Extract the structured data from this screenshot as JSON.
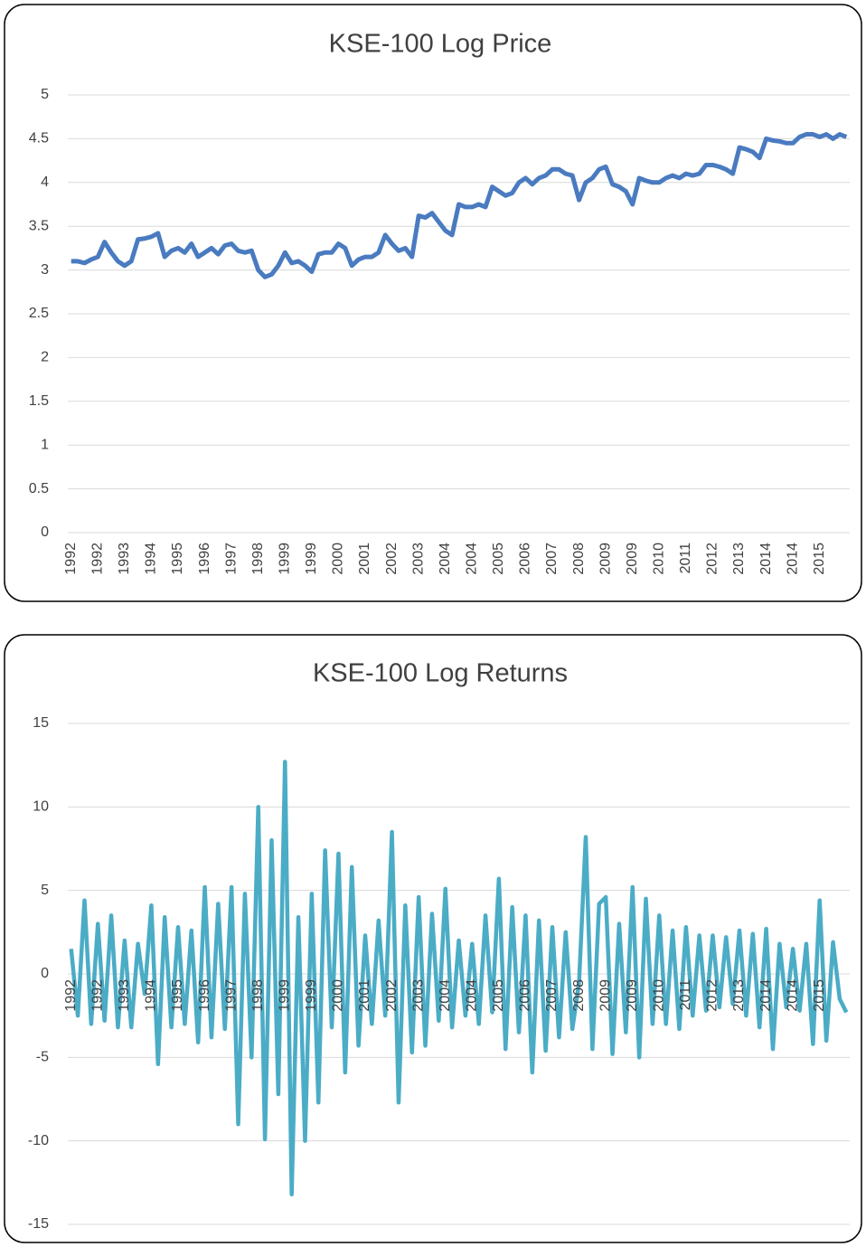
{
  "chart_data": [
    {
      "type": "line",
      "title": "KSE-100 Log Price",
      "categories": [
        "1992",
        null,
        null,
        null,
        "1992",
        null,
        null,
        null,
        "1993",
        null,
        null,
        null,
        "1994",
        null,
        null,
        null,
        "1995",
        null,
        null,
        null,
        "1996",
        null,
        null,
        null,
        "1997",
        null,
        null,
        null,
        "1998",
        null,
        null,
        null,
        "1999",
        null,
        null,
        null,
        "1999",
        null,
        null,
        null,
        "2000",
        null,
        null,
        null,
        "2001",
        null,
        null,
        null,
        "2002",
        null,
        null,
        null,
        "2003",
        null,
        null,
        null,
        "2004",
        null,
        null,
        null,
        "2004",
        null,
        null,
        null,
        "2005",
        null,
        null,
        null,
        "2006",
        null,
        null,
        null,
        "2007",
        null,
        null,
        null,
        "2008",
        null,
        null,
        null,
        "2009",
        null,
        null,
        null,
        "2009",
        null,
        null,
        null,
        "2010",
        null,
        null,
        null,
        "2011",
        null,
        null,
        null,
        "2012",
        null,
        null,
        null,
        "2013",
        null,
        null,
        null,
        "2014",
        null,
        null,
        null,
        "2014",
        null,
        null,
        null,
        "2015",
        null,
        null,
        null,
        null
      ],
      "values": [
        3.1,
        3.1,
        3.08,
        3.12,
        3.15,
        3.32,
        3.2,
        3.1,
        3.05,
        3.1,
        3.35,
        3.36,
        3.38,
        3.42,
        3.15,
        3.22,
        3.25,
        3.2,
        3.3,
        3.15,
        3.2,
        3.25,
        3.18,
        3.28,
        3.3,
        3.22,
        3.2,
        3.22,
        3.0,
        2.92,
        2.95,
        3.05,
        3.2,
        3.08,
        3.1,
        3.05,
        2.98,
        3.18,
        3.2,
        3.2,
        3.3,
        3.25,
        3.05,
        3.12,
        3.15,
        3.15,
        3.2,
        3.4,
        3.3,
        3.22,
        3.25,
        3.15,
        3.62,
        3.6,
        3.65,
        3.55,
        3.45,
        3.4,
        3.75,
        3.72,
        3.72,
        3.75,
        3.72,
        3.95,
        3.9,
        3.85,
        3.88,
        4.0,
        4.05,
        3.98,
        4.05,
        4.08,
        4.15,
        4.15,
        4.1,
        4.08,
        3.8,
        4.0,
        4.05,
        4.15,
        4.18,
        3.98,
        3.95,
        3.9,
        3.75,
        4.05,
        4.02,
        4.0,
        4.0,
        4.05,
        4.08,
        4.05,
        4.1,
        4.08,
        4.1,
        4.2,
        4.2,
        4.18,
        4.15,
        4.1,
        4.4,
        4.38,
        4.35,
        4.28,
        4.5,
        4.48,
        4.47,
        4.45,
        4.45,
        4.52,
        4.55,
        4.55,
        4.52,
        4.55,
        4.5,
        4.55,
        4.52
      ],
      "color": "#4a7bc0",
      "ylim": [
        0,
        5
      ],
      "yticks": [
        0,
        0.5,
        1,
        1.5,
        2,
        2.5,
        3,
        3.5,
        4,
        4.5,
        5
      ],
      "grid": true
    },
    {
      "type": "line",
      "title": "KSE-100 Log Returns",
      "categories": [
        "1992",
        null,
        null,
        null,
        "1992",
        null,
        null,
        null,
        "1993",
        null,
        null,
        null,
        "1994",
        null,
        null,
        null,
        "1995",
        null,
        null,
        null,
        "1996",
        null,
        null,
        null,
        "1997",
        null,
        null,
        null,
        "1998",
        null,
        null,
        null,
        "1999",
        null,
        null,
        null,
        "1999",
        null,
        null,
        null,
        "2000",
        null,
        null,
        null,
        "2001",
        null,
        null,
        null,
        "2002",
        null,
        null,
        null,
        "2003",
        null,
        null,
        null,
        "2004",
        null,
        null,
        null,
        "2004",
        null,
        null,
        null,
        "2005",
        null,
        null,
        null,
        "2006",
        null,
        null,
        null,
        "2007",
        null,
        null,
        null,
        "2008",
        null,
        null,
        null,
        "2009",
        null,
        null,
        null,
        "2009",
        null,
        null,
        null,
        "2010",
        null,
        null,
        null,
        "2011",
        null,
        null,
        null,
        "2012",
        null,
        null,
        null,
        "2013",
        null,
        null,
        null,
        "2014",
        null,
        null,
        null,
        "2014",
        null,
        null,
        null,
        "2015",
        null,
        null,
        null,
        null
      ],
      "values": [
        1.5,
        -2.5,
        4.4,
        -3,
        3,
        -2.8,
        3.5,
        -3.2,
        2,
        -3.2,
        1.8,
        -1.2,
        4.1,
        -5.4,
        3.4,
        -3.2,
        2.8,
        -3,
        2.6,
        -4.1,
        5.2,
        -3.8,
        4.2,
        -3.3,
        5.2,
        -9,
        4.8,
        -5,
        10,
        -9.9,
        8,
        -7.2,
        12.7,
        -13.2,
        3.4,
        -10,
        4.8,
        -7.7,
        7.4,
        -3.2,
        7.2,
        -5.9,
        6.4,
        -4.3,
        2.3,
        -3,
        3.2,
        -2.5,
        8.5,
        -7.7,
        4.1,
        -4.7,
        4.6,
        -4.3,
        3.6,
        -2.8,
        5.1,
        -3.2,
        2,
        -2.5,
        1.8,
        -3,
        3.5,
        -2.3,
        5.7,
        -4.5,
        4,
        -3.5,
        3.5,
        -5.9,
        3.2,
        -4.6,
        2.8,
        -3.8,
        2.5,
        -3.3,
        -0.5,
        8.2,
        -4.5,
        4.2,
        4.6,
        -4.8,
        3,
        -3.5,
        5.2,
        -5,
        4.5,
        -3,
        3.5,
        -3,
        2.6,
        -3.3,
        2.8,
        -2.5,
        2.3,
        -2.2,
        2.3,
        -2,
        2.2,
        -1.8,
        2.6,
        -2.5,
        2.4,
        -3.2,
        2.7,
        -4.5,
        1.8,
        -2,
        1.5,
        -2.2,
        1.8,
        -4.2,
        4.4,
        -4,
        1.9,
        -1.5,
        -2.3
      ],
      "color": "#4bacc6",
      "ylim": [
        -15,
        15
      ],
      "yticks": [
        -15,
        -10,
        -5,
        0,
        5,
        10,
        15
      ],
      "grid": true
    }
  ]
}
